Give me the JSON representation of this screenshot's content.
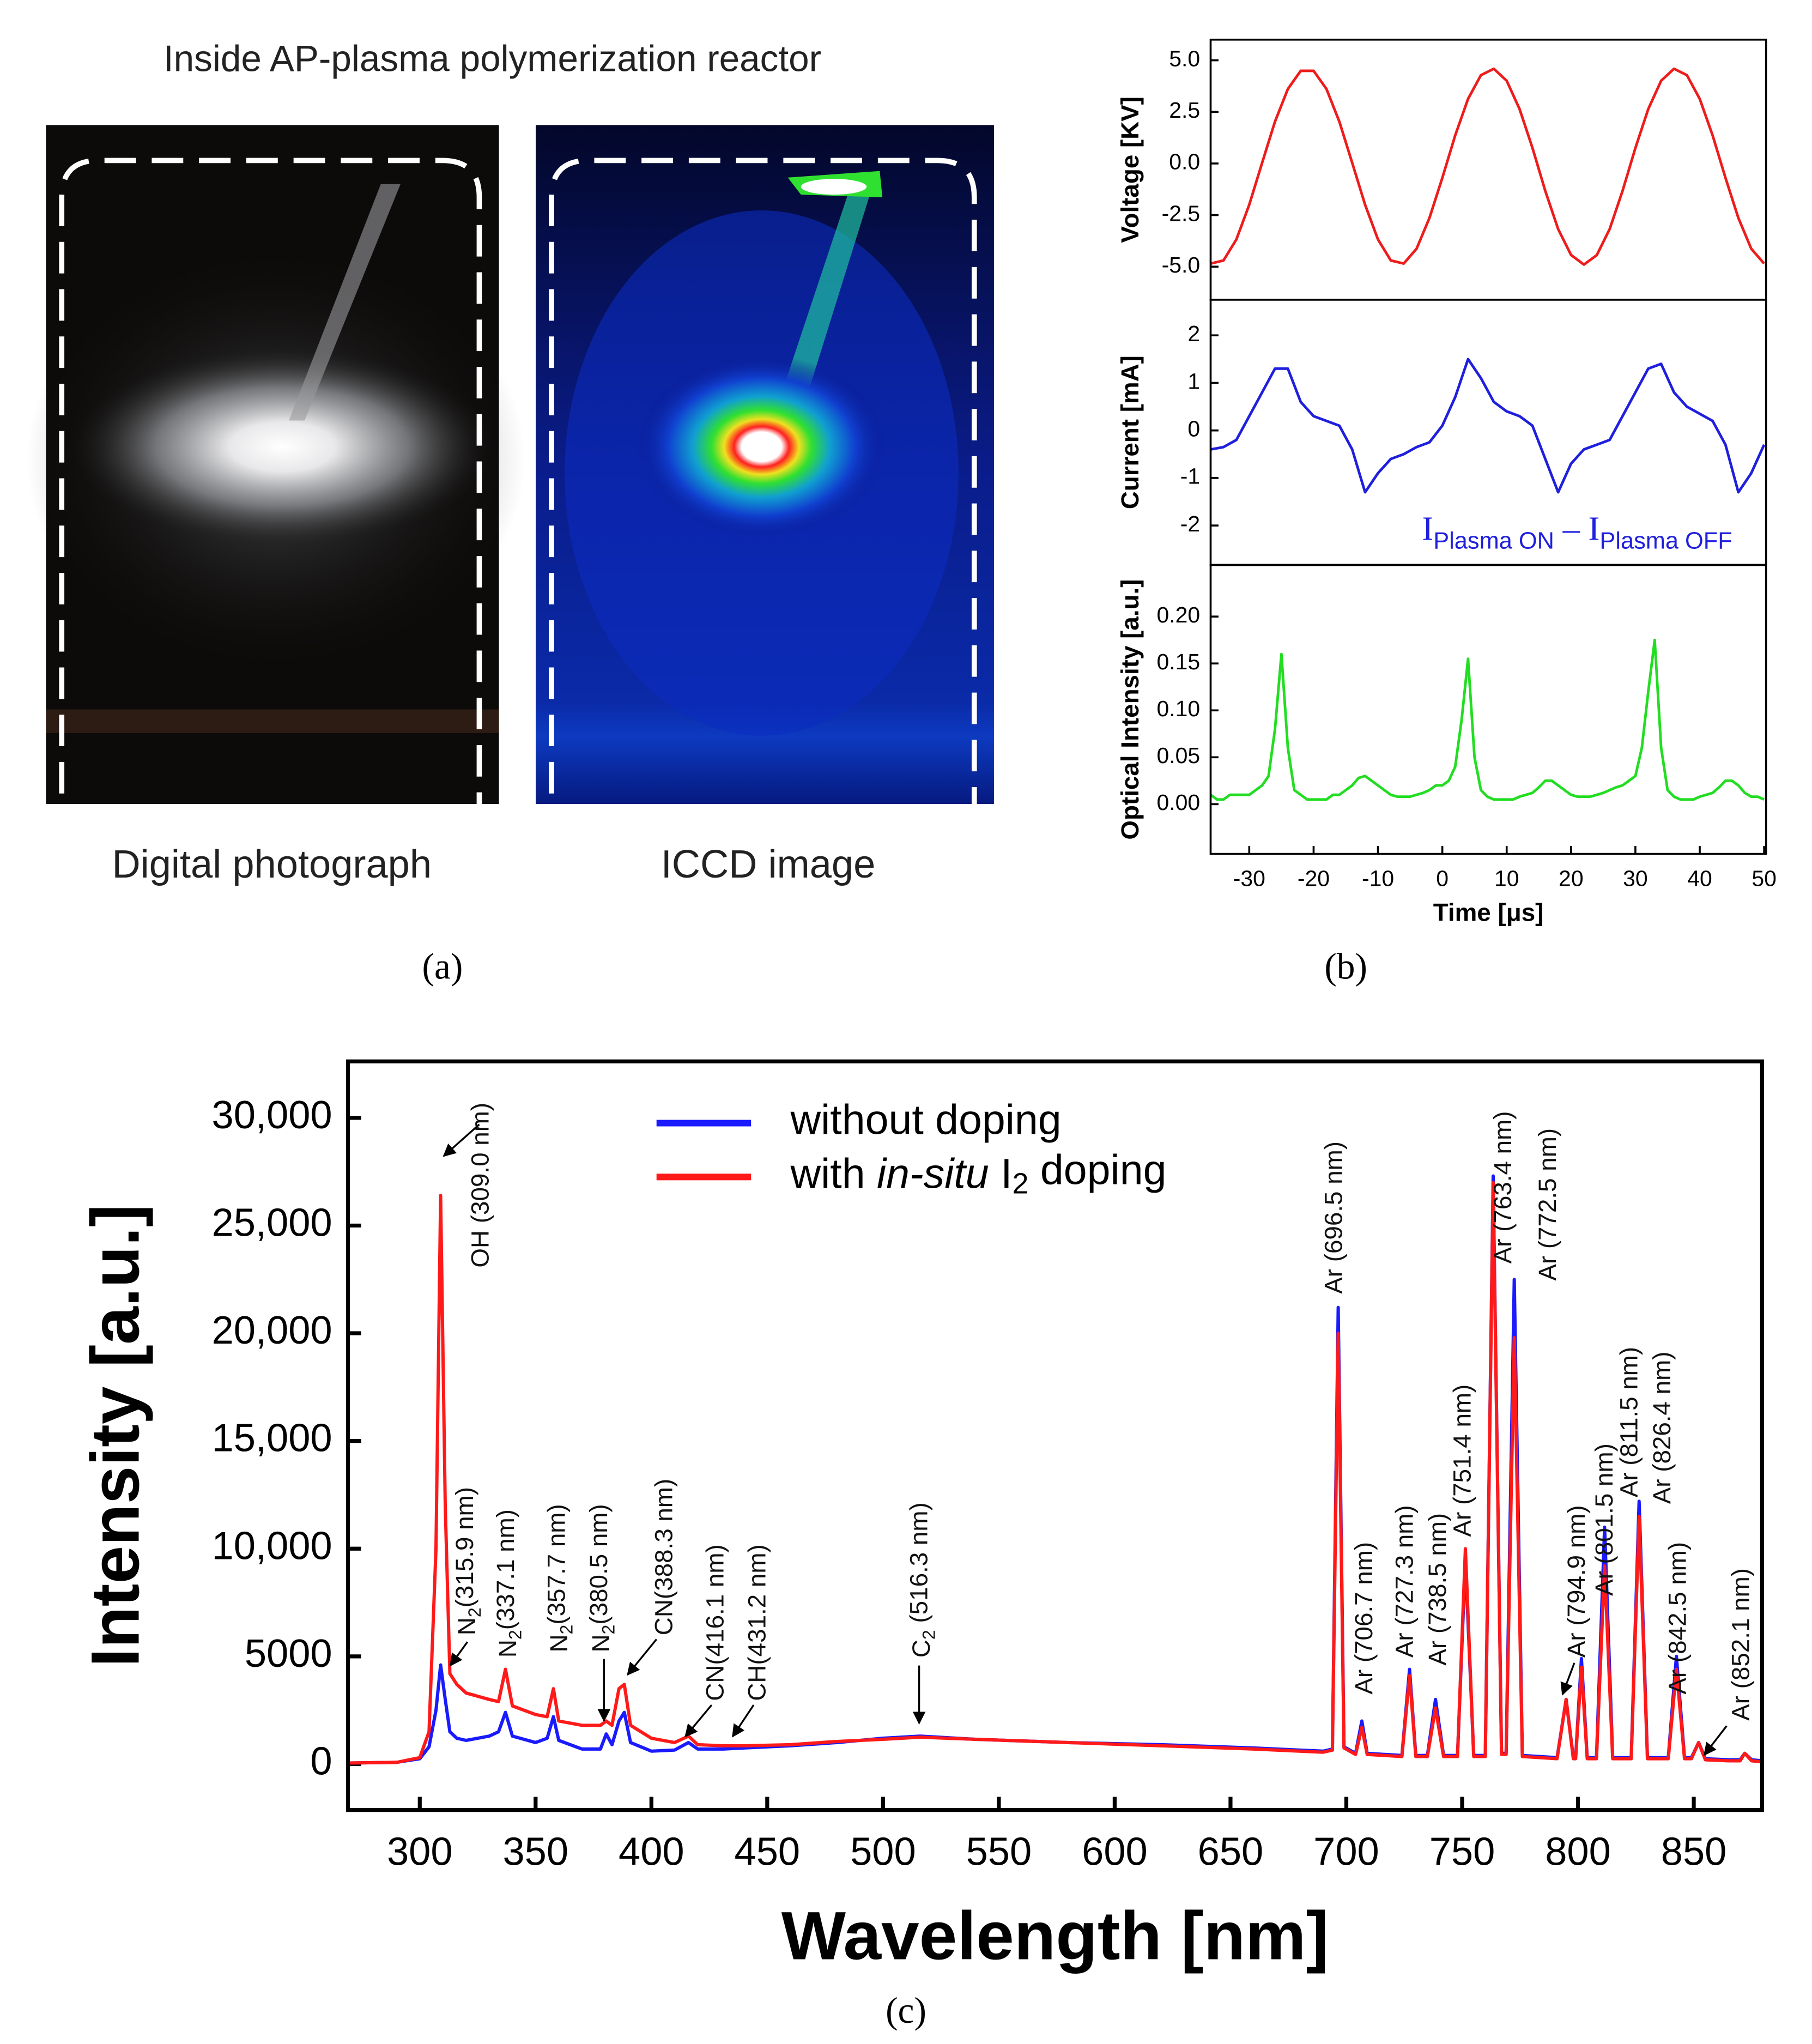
{
  "panel_a": {
    "title": "Inside AP-plasma polymerization reactor",
    "left_caption": "Digital photograph",
    "right_caption": "ICCD image",
    "panel_label": "(a)"
  },
  "panel_b_label": "(b)",
  "panel_c_label": "(c)",
  "chart_data": [
    {
      "type": "line",
      "ylabel": "Voltage [KV]",
      "xlim": [
        -36,
        50.3
      ],
      "ylim": [
        -6.6,
        6.0
      ],
      "yticks": [
        {
          "value": 5,
          "label": "5.0"
        },
        {
          "value": 2.5,
          "label": "2.5"
        },
        {
          "value": 0,
          "label": "0.0"
        },
        {
          "value": -2.5,
          "label": "-2.5"
        },
        {
          "value": -5,
          "label": "-5.0"
        }
      ],
      "x": [
        -36,
        -34,
        -32,
        -30,
        -28,
        -26,
        -24,
        -22,
        -20,
        -18,
        -16,
        -14,
        -12,
        -10,
        -8,
        -6,
        -4,
        -2,
        0,
        2,
        4,
        6,
        8,
        10,
        12,
        14,
        16,
        18,
        20,
        22,
        24,
        26,
        28,
        30,
        32,
        34,
        36,
        38,
        40,
        42,
        44,
        46,
        48,
        50
      ],
      "series": [
        {
          "color": "#ee1c1c",
          "values": [
            -4.85,
            -4.7,
            -3.68,
            -2.0,
            0.03,
            2.03,
            3.61,
            4.49,
            4.49,
            3.61,
            2.03,
            0.03,
            -2.0,
            -3.68,
            -4.7,
            -4.85,
            -4.13,
            -2.64,
            -0.7,
            1.36,
            3.13,
            4.28,
            4.59,
            4.01,
            2.64,
            0.76,
            -1.33,
            -3.18,
            -4.43,
            -4.9,
            -4.44,
            -3.18,
            -1.33,
            0.75,
            2.64,
            4.01,
            4.59,
            4.28,
            3.13,
            1.36,
            -0.7,
            -2.64,
            -4.13,
            -4.85
          ]
        }
      ]
    },
    {
      "type": "line",
      "ylabel": "Current [mA]",
      "xlim": [
        -36,
        50.3
      ],
      "ylim": [
        -2.83,
        2.75
      ],
      "yticks": [
        2,
        1,
        0,
        -1,
        -2
      ],
      "x": [
        -36,
        -34,
        -32,
        -30,
        -28,
        -26,
        -24,
        -22,
        -20,
        -18,
        -16,
        -14,
        -12,
        -10,
        -8,
        -6,
        -4,
        -2,
        0,
        2,
        4,
        6,
        8,
        10,
        12,
        14,
        16,
        18,
        20,
        22,
        24,
        26,
        28,
        30,
        32,
        34,
        36,
        38,
        40,
        42,
        44,
        46,
        48,
        50
      ],
      "series": [
        {
          "color": "#1f1fdd",
          "values": [
            -0.4,
            -0.35,
            -0.2,
            0.3,
            0.8,
            1.3,
            1.3,
            0.6,
            0.3,
            0.2,
            0.1,
            -0.4,
            -1.3,
            -0.9,
            -0.6,
            -0.5,
            -0.35,
            -0.25,
            0.1,
            0.7,
            1.5,
            1.1,
            0.6,
            0.4,
            0.3,
            0.1,
            -0.6,
            -1.3,
            -0.7,
            -0.4,
            -0.3,
            -0.2,
            0.3,
            0.8,
            1.3,
            1.4,
            0.8,
            0.5,
            0.35,
            0.2,
            -0.3,
            -1.3,
            -0.9,
            -0.3
          ]
        }
      ],
      "annotation": {
        "main1": "I",
        "sub1": "Plasma ON",
        "operator": " – ",
        "main2": "I",
        "sub2": "Plasma OFF"
      }
    },
    {
      "type": "line",
      "ylabel": "Optical Intensity [a.u.]",
      "xlabel": "Time [μs]",
      "xlim": [
        -36,
        50.3
      ],
      "ylim": [
        -0.053,
        0.255
      ],
      "yticks": [
        {
          "value": 0.2,
          "label": "0.20"
        },
        {
          "value": 0.15,
          "label": "0.15"
        },
        {
          "value": 0.1,
          "label": "0.10"
        },
        {
          "value": 0.05,
          "label": "0.05"
        },
        {
          "value": 0,
          "label": "0.00"
        }
      ],
      "xticks": [
        -30,
        -20,
        -10,
        0,
        10,
        20,
        30,
        40,
        50
      ],
      "x": [
        -36,
        -35,
        -34,
        -33,
        -32,
        -31,
        -30,
        -29,
        -28,
        -27,
        -26,
        -25,
        -24,
        -23,
        -22,
        -21,
        -20,
        -19,
        -18,
        -17,
        -16,
        -15,
        -14,
        -13,
        -12,
        -11,
        -10,
        -9,
        -8,
        -7,
        -6,
        -5,
        -4,
        -3,
        -2,
        -1,
        0,
        1,
        2,
        3,
        4,
        5,
        6,
        7,
        8,
        9,
        10,
        11,
        12,
        13,
        14,
        15,
        16,
        17,
        18,
        19,
        20,
        21,
        22,
        23,
        24,
        25,
        26,
        27,
        28,
        29,
        30,
        31,
        32,
        33,
        34,
        35,
        36,
        37,
        38,
        39,
        40,
        41,
        42,
        43,
        44,
        45,
        46,
        47,
        48,
        49,
        50
      ],
      "series": [
        {
          "color": "#22dd22",
          "values": [
            0.01,
            0.005,
            0.005,
            0.01,
            0.01,
            0.01,
            0.01,
            0.015,
            0.02,
            0.03,
            0.08,
            0.16,
            0.06,
            0.015,
            0.01,
            0.005,
            0.005,
            0.005,
            0.005,
            0.01,
            0.01,
            0.015,
            0.02,
            0.028,
            0.03,
            0.025,
            0.02,
            0.015,
            0.01,
            0.008,
            0.008,
            0.008,
            0.01,
            0.012,
            0.015,
            0.02,
            0.02,
            0.025,
            0.04,
            0.09,
            0.155,
            0.05,
            0.015,
            0.008,
            0.005,
            0.005,
            0.005,
            0.005,
            0.008,
            0.01,
            0.012,
            0.018,
            0.025,
            0.025,
            0.02,
            0.015,
            0.01,
            0.008,
            0.008,
            0.008,
            0.01,
            0.012,
            0.015,
            0.018,
            0.02,
            0.025,
            0.03,
            0.06,
            0.12,
            0.175,
            0.06,
            0.015,
            0.008,
            0.005,
            0.005,
            0.005,
            0.008,
            0.01,
            0.012,
            0.018,
            0.025,
            0.025,
            0.02,
            0.012,
            0.008,
            0.008,
            0.005
          ]
        }
      ]
    },
    {
      "type": "line",
      "xlabel": "Wavelength [nm]",
      "ylabel": "Intensity [a.u.]",
      "xlim": [
        269,
        879.5
      ],
      "ylim": [
        -2130,
        32620
      ],
      "xticks": [
        300,
        350,
        400,
        450,
        500,
        550,
        600,
        650,
        700,
        750,
        800,
        850
      ],
      "yticks": [
        0,
        5000,
        {
          "value": 10000,
          "label": "10,000"
        },
        {
          "value": 15000,
          "label": "15,000"
        },
        {
          "value": 20000,
          "label": "20,000"
        },
        {
          "value": 25000,
          "label": "25,000"
        },
        {
          "value": 30000,
          "label": "30,000"
        }
      ],
      "x": [
        269,
        290,
        300,
        304,
        307,
        309,
        311,
        313,
        316,
        320,
        330,
        334,
        337,
        340,
        350,
        355,
        357.7,
        360,
        370,
        378,
        380.5,
        383,
        386,
        388.3,
        391,
        400,
        410,
        416,
        420,
        431,
        440,
        460,
        480,
        500,
        516,
        540,
        580,
        620,
        660,
        690,
        694,
        696.5,
        699,
        704,
        706.7,
        709,
        724,
        727.3,
        730,
        735,
        738.5,
        742,
        748,
        751.4,
        755,
        760,
        763.4,
        767,
        769,
        772.5,
        776,
        791,
        794.9,
        798,
        799,
        801.5,
        804,
        808,
        811.5,
        815,
        823,
        826.4,
        830,
        839,
        842.5,
        846,
        849,
        852.1,
        855,
        865,
        870,
        872,
        875,
        880
      ],
      "series": [
        {
          "name": "without doping",
          "color": "#1a1aff",
          "values": [
            50,
            80,
            250,
            800,
            2500,
            4600,
            3000,
            1500,
            1200,
            1100,
            1300,
            1500,
            2400,
            1300,
            1000,
            1200,
            2200,
            1100,
            700,
            700,
            1400,
            900,
            2000,
            2400,
            1000,
            600,
            650,
            1000,
            700,
            700,
            750,
            850,
            1000,
            1200,
            1300,
            1150,
            1000,
            900,
            750,
            600,
            700,
            21200,
            800,
            500,
            2000,
            500,
            400,
            4400,
            400,
            400,
            3000,
            400,
            400,
            9500,
            400,
            400,
            27300,
            500,
            500,
            22500,
            400,
            300,
            3000,
            300,
            300,
            4900,
            300,
            300,
            11000,
            300,
            300,
            12200,
            300,
            300,
            5000,
            300,
            300,
            1000,
            250,
            200,
            200,
            500,
            200,
            150
          ]
        },
        {
          "name": "with in-situ I2 doping",
          "color": "#ff1a1a",
          "values": [
            50,
            80,
            300,
            1500,
            10000,
            26400,
            12000,
            4200,
            3700,
            3300,
            3000,
            2900,
            4400,
            2700,
            2300,
            2200,
            3500,
            2000,
            1800,
            1800,
            2000,
            1800,
            3500,
            3700,
            1800,
            1200,
            1000,
            1300,
            900,
            850,
            850,
            900,
            1050,
            1150,
            1250,
            1150,
            1000,
            850,
            700,
            550,
            650,
            20000,
            750,
            450,
            1700,
            450,
            350,
            4100,
            350,
            350,
            2600,
            350,
            350,
            10000,
            350,
            350,
            27000,
            450,
            450,
            19800,
            350,
            250,
            3000,
            250,
            250,
            4500,
            250,
            250,
            9200,
            250,
            250,
            11500,
            250,
            250,
            4400,
            250,
            250,
            1000,
            200,
            150,
            150,
            500,
            150,
            100
          ]
        }
      ],
      "legend": "upper center",
      "annotations": [
        "OH (309.0 nm)",
        "N2(315.9 nm)",
        "N2(337.1 nm)",
        "N2(357.7 nm)",
        "N2(380.5 nm)",
        "CN(388.3 nm)",
        "CN(416.1 nm)",
        "CH(431.2 nm)",
        "C2 (516.3 nm)",
        "Ar (696.5 nm)",
        "Ar (706.7 nm)",
        "Ar (727.3 nm)",
        "Ar (738.5 nm)",
        "Ar (751.4 nm)",
        "Ar (763.4 nm)",
        "Ar (772.5 nm)",
        "Ar (794.9 nm)",
        "Ar (801.5 nm)",
        "Ar (811.5 nm)",
        "Ar (826.4 nm)",
        "Ar (842.5 nm)",
        "Ar (852.1 nm)"
      ]
    }
  ]
}
